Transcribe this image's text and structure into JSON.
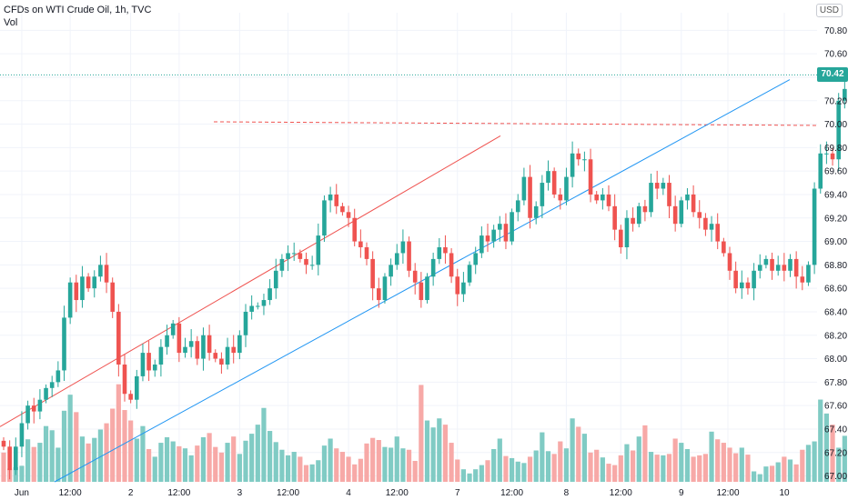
{
  "legend": {
    "symbol_line": "CFDs on WTI Crude Oil, 1h, TVC",
    "volume_label": "Vol"
  },
  "currency_label": "USD",
  "last_price_label": "70.42",
  "colors": {
    "up": "#26a69a",
    "down": "#ef5350",
    "up_volume": "#80cbc4",
    "down_volume": "#f7a9a7",
    "grid": "#f0f3fa",
    "axis_text": "#131722",
    "channel_line_upper": "#ef5350",
    "trend_line": "#2196f3",
    "resistance_line": "#ef5350",
    "last_price_line": "#26a69a"
  },
  "chart_data": {
    "type": "candlestick",
    "title": "CFDs on WTI Crude Oil, 1h, TVC",
    "interval": "1h",
    "y_axis_ticks": [
      "70.80",
      "70.60",
      "70.40",
      "70.20",
      "70.00",
      "69.80",
      "69.60",
      "69.40",
      "69.20",
      "69.00",
      "68.80",
      "68.60",
      "68.40",
      "68.20",
      "68.00",
      "67.80",
      "67.60",
      "67.40",
      "67.20",
      "67.00"
    ],
    "x_axis_ticks": [
      "Jun",
      "12:00",
      "2",
      "12:00",
      "3",
      "12:00",
      "4",
      "12:00",
      "7",
      "12:00",
      "8",
      "12:00",
      "9",
      "12:00",
      "10"
    ],
    "ylim": [
      66.95,
      70.95
    ],
    "grid": true,
    "last_price": 70.42,
    "close": [
      67.25,
      67.05,
      67.25,
      67.45,
      67.6,
      67.55,
      67.65,
      67.75,
      67.8,
      67.9,
      68.35,
      68.65,
      68.5,
      68.7,
      68.6,
      68.7,
      68.8,
      68.65,
      68.4,
      67.95,
      67.7,
      67.65,
      67.85,
      68.05,
      67.9,
      67.95,
      68.1,
      68.2,
      68.3,
      68.05,
      68.1,
      68.15,
      68.0,
      68.2,
      68.05,
      68.0,
      67.95,
      68.1,
      68.05,
      68.2,
      68.4,
      68.45,
      68.45,
      68.5,
      68.6,
      68.75,
      68.85,
      68.9,
      68.9,
      68.85,
      68.8,
      68.8,
      69.05,
      69.35,
      69.4,
      69.3,
      69.25,
      69.2,
      69.0,
      68.95,
      68.85,
      68.6,
      68.5,
      68.7,
      68.8,
      68.9,
      69.0,
      68.75,
      68.65,
      68.5,
      68.7,
      68.85,
      68.95,
      68.9,
      68.7,
      68.55,
      68.65,
      68.8,
      68.9,
      69.05,
      69.0,
      69.1,
      69.15,
      69.0,
      69.25,
      69.35,
      69.55,
      69.2,
      69.3,
      69.5,
      69.6,
      69.4,
      69.35,
      69.55,
      69.75,
      69.7,
      69.7,
      69.4,
      69.35,
      69.4,
      69.3,
      69.1,
      68.95,
      69.2,
      69.15,
      69.3,
      69.25,
      69.5,
      69.45,
      69.5,
      69.3,
      69.15,
      69.35,
      69.4,
      69.25,
      69.2,
      69.1,
      69.15,
      69.0,
      68.9,
      68.75,
      68.6,
      68.65,
      68.6,
      68.75,
      68.8,
      68.85,
      68.75,
      68.8,
      68.75,
      68.85,
      68.7,
      68.65,
      68.8,
      69.45,
      69.75,
      69.75,
      69.7,
      70.2,
      70.3,
      70.05,
      70.0,
      70.05,
      70.15,
      70.55,
      70.55,
      70.5,
      70.42
    ],
    "volume": [
      420,
      190,
      210,
      230,
      610,
      500,
      560,
      800,
      740,
      490,
      1020,
      1250,
      1000,
      650,
      550,
      630,
      750,
      840,
      1050,
      1400,
      1030,
      880,
      620,
      800,
      470,
      360,
      560,
      640,
      580,
      510,
      480,
      380,
      520,
      640,
      700,
      500,
      420,
      560,
      650,
      400,
      590,
      690,
      820,
      1060,
      730,
      570,
      460,
      380,
      430,
      360,
      240,
      250,
      310,
      520,
      620,
      480,
      430,
      360,
      250,
      330,
      550,
      630,
      600,
      500,
      490,
      650,
      480,
      460,
      300,
      1390,
      880,
      780,
      910,
      820,
      560,
      320,
      180,
      120,
      180,
      240,
      310,
      470,
      620,
      370,
      340,
      290,
      270,
      360,
      450,
      710,
      440,
      400,
      580,
      480,
      910,
      790,
      690,
      420,
      460,
      350,
      260,
      240,
      380,
      540,
      450,
      650,
      810,
      430,
      390,
      380,
      400,
      620,
      560,
      470,
      360,
      380,
      400,
      720,
      610,
      560,
      490,
      410,
      490,
      390,
      150,
      110,
      220,
      230,
      280,
      360,
      320,
      250,
      460,
      530,
      580,
      1180,
      980,
      820,
      490,
      660,
      380,
      240,
      360,
      240,
      150,
      100,
      80,
      60
    ],
    "resistance_level": 70.02,
    "trend_line": {
      "start": [
        0,
        66.95
      ],
      "end": [
        145,
        70.38
      ]
    },
    "channel_line_upper": {
      "start": [
        0,
        67.42
      ],
      "end": [
        108,
        69.9
      ]
    }
  }
}
